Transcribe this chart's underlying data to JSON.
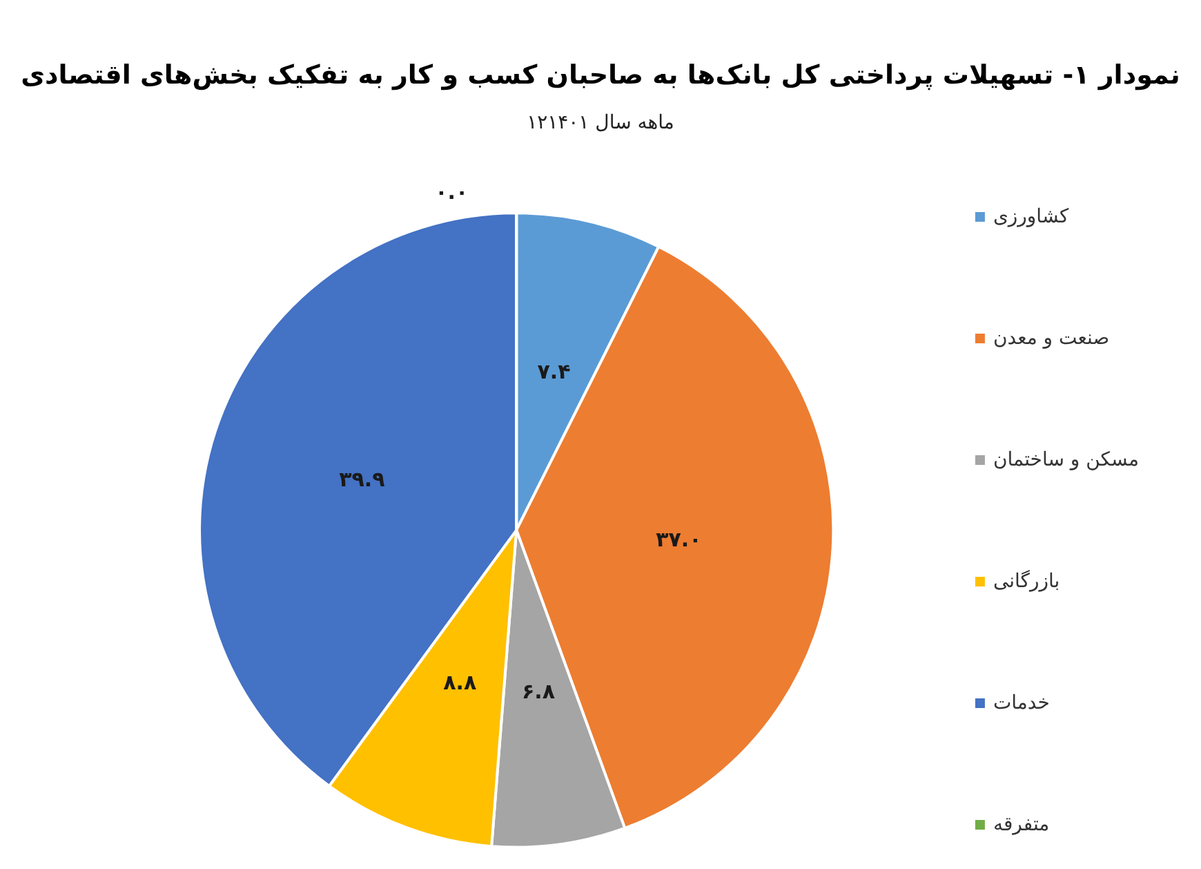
{
  "chart_data": {
    "type": "pie",
    "title": "نمودار ۱- تسهیلات پرداختی کل بانک‌ها به صاحبان کسب و کار به تفکیک بخش‌های اقتصادی",
    "subtitle": "۱۲ماهه سال ۱۴۰۱",
    "categories": [
      "کشاورزی",
      "صنعت و معدن",
      "مسکن و ساختمان",
      "بازرگانی",
      "خدمات",
      "متفرقه"
    ],
    "values": [
      7.4,
      37.0,
      6.8,
      8.8,
      39.9,
      0.0
    ],
    "value_labels": [
      "۷.۴",
      "۳۷.۰",
      "۶.۸",
      "۸.۸",
      "۳۹.۹",
      "۰.۰"
    ],
    "colors": [
      "#5b9bd5",
      "#ed7d31",
      "#a5a5a5",
      "#ffc000",
      "#4472c4",
      "#70ad47"
    ],
    "legend": "right"
  }
}
